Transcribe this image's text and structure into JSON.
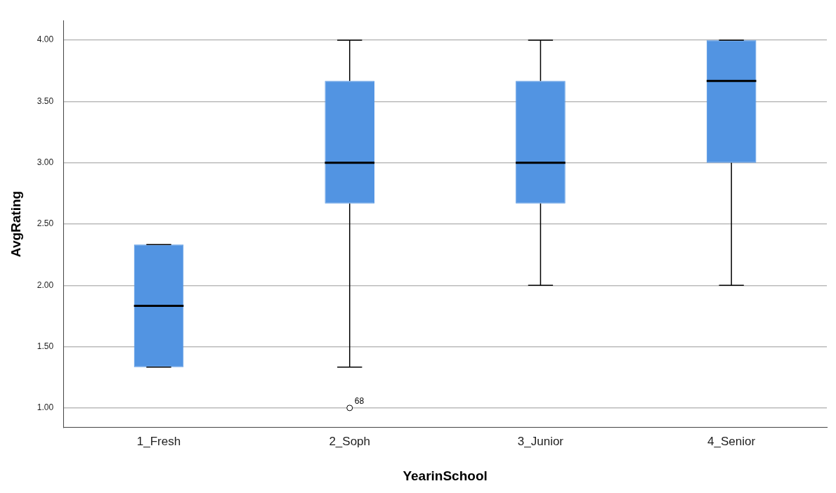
{
  "chart_data": {
    "type": "box",
    "xlabel": "YearinSchool",
    "ylabel": "AvgRating",
    "categories": [
      "1_Fresh",
      "2_Soph",
      "3_Junior",
      "4_Senior"
    ],
    "color": "#5294e2",
    "boxes": [
      {
        "low": 1.333,
        "q1": 1.333,
        "median": 1.833,
        "q3": 2.333,
        "high": 2.333
      },
      {
        "low": 1.333,
        "q1": 2.667,
        "median": 3.0,
        "q3": 3.667,
        "high": 4.0,
        "outliers": [
          1.0
        ]
      },
      {
        "low": 2.0,
        "q1": 2.667,
        "median": 3.0,
        "q3": 3.667,
        "high": 4.0
      },
      {
        "low": 2.0,
        "q1": 3.0,
        "median": 3.667,
        "q3": 4.0,
        "high": 4.0
      }
    ],
    "ylim": [
      0.84,
      4.16
    ],
    "yticks": [
      {
        "value": 1,
        "label": "1.00"
      },
      {
        "value": 1.5,
        "label": "1.50"
      },
      {
        "value": 2,
        "label": "2.00"
      },
      {
        "value": 2.5,
        "label": "2.50"
      },
      {
        "value": 3,
        "label": "3.00"
      },
      {
        "value": 3.5,
        "label": "3.50"
      },
      {
        "value": 4,
        "label": "4.00"
      }
    ],
    "grid": "y",
    "marker": "circle",
    "annotations": [
      "68"
    ]
  }
}
